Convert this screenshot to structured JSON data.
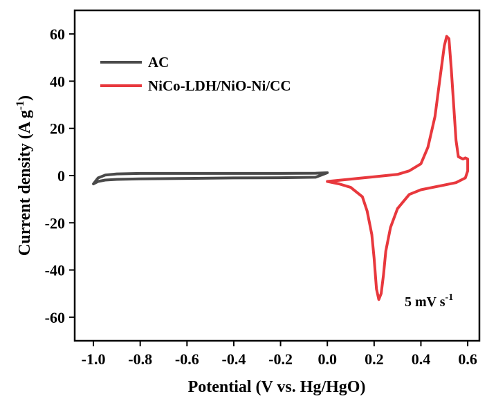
{
  "chart_data": {
    "type": "line",
    "xlabel": "Potential (V vs. Hg/HgO)",
    "ylabel_main": "Current density (A g",
    "ylabel_sup": "-1",
    "ylabel_end": ")",
    "xlim": [
      -1.08,
      0.65
    ],
    "ylim": [
      -70,
      70
    ],
    "xticks": [
      -1.0,
      -0.8,
      -0.6,
      -0.4,
      -0.2,
      0.0,
      0.2,
      0.4,
      0.6
    ],
    "xtick_labels": [
      "-1.0",
      "-0.8",
      "-0.6",
      "-0.4",
      "-0.2",
      "0.0",
      "0.2",
      "0.4",
      "0.6"
    ],
    "yticks": [
      -60,
      -40,
      -20,
      0,
      20,
      40,
      60
    ],
    "ytick_labels": [
      "-60",
      "-40",
      "-20",
      "0",
      "20",
      "40",
      "60"
    ],
    "grid": false,
    "legend_position": "top-left",
    "annotation": {
      "main": "5 mV s",
      "sup": "-1"
    },
    "series": [
      {
        "name": "AC",
        "color": "#4a4a4a",
        "x": [
          -1.0,
          -0.98,
          -0.95,
          -0.9,
          -0.8,
          -0.6,
          -0.4,
          -0.2,
          -0.05,
          0.0,
          -0.05,
          -0.2,
          -0.4,
          -0.6,
          -0.8,
          -0.9,
          -0.95,
          -0.98,
          -1.0
        ],
        "y": [
          -3.5,
          -1.0,
          0.2,
          0.7,
          0.9,
          0.9,
          0.9,
          0.9,
          1.0,
          1.2,
          -0.7,
          -0.9,
          -1.0,
          -1.2,
          -1.4,
          -1.6,
          -1.9,
          -2.5,
          -3.5
        ]
      },
      {
        "name": "NiCo-LDH/NiO-Ni/CC",
        "color": "#e8383d",
        "x": [
          0.0,
          0.1,
          0.2,
          0.3,
          0.35,
          0.4,
          0.43,
          0.46,
          0.48,
          0.5,
          0.51,
          0.52,
          0.53,
          0.54,
          0.55,
          0.56,
          0.58,
          0.59,
          0.6,
          0.6,
          0.59,
          0.55,
          0.5,
          0.45,
          0.4,
          0.35,
          0.3,
          0.27,
          0.25,
          0.24,
          0.23,
          0.22,
          0.21,
          0.2,
          0.19,
          0.17,
          0.15,
          0.1,
          0.05,
          0.0
        ],
        "y": [
          -2.5,
          -1.5,
          -0.5,
          0.5,
          2.0,
          5.0,
          12.0,
          25.0,
          40.0,
          55.0,
          59.0,
          58.0,
          45.0,
          30.0,
          15.0,
          8.0,
          7.0,
          7.5,
          7.0,
          2.0,
          -1.0,
          -3.0,
          -4.0,
          -5.0,
          -6.0,
          -8.0,
          -14.0,
          -22.0,
          -32.0,
          -42.0,
          -50.0,
          -52.5,
          -48.0,
          -35.0,
          -25.0,
          -15.0,
          -9.0,
          -5.0,
          -3.5,
          -2.5
        ]
      }
    ]
  }
}
